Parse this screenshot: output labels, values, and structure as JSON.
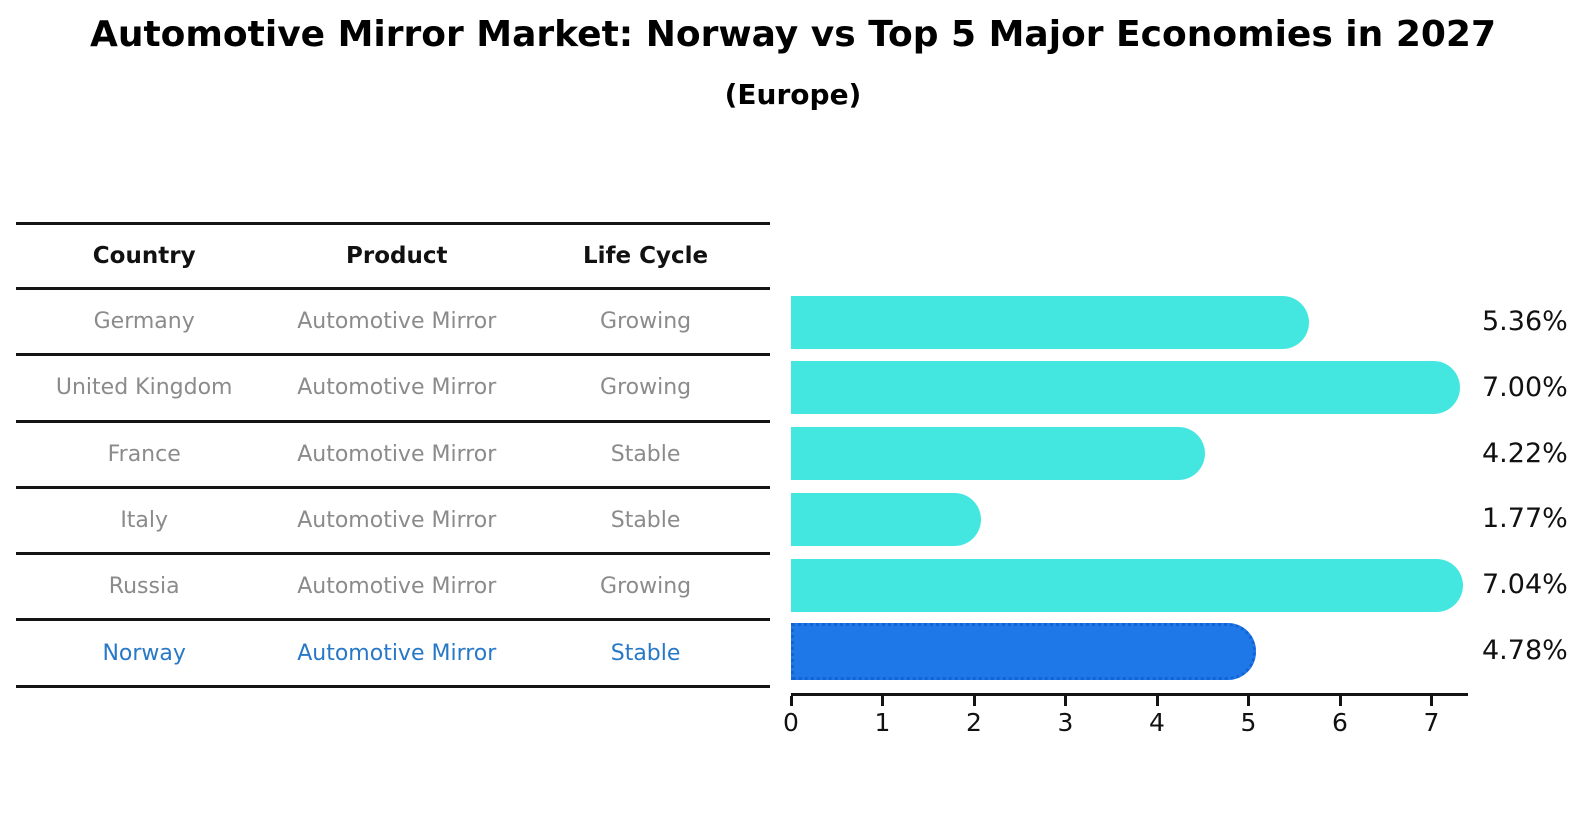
{
  "title": "Automotive Mirror Market: Norway vs Top 5 Major Economies in 2027",
  "subtitle": "(Europe)",
  "table": {
    "headers": [
      "Country",
      "Product",
      "Life Cycle"
    ],
    "rows": [
      {
        "country": "Germany",
        "product": "Automotive Mirror",
        "life_cycle": "Growing",
        "highlight": false
      },
      {
        "country": "United Kingdom",
        "product": "Automotive Mirror",
        "life_cycle": "Growing",
        "highlight": false
      },
      {
        "country": "France",
        "product": "Automotive Mirror",
        "life_cycle": "Stable",
        "highlight": false
      },
      {
        "country": "Italy",
        "product": "Automotive Mirror",
        "life_cycle": "Stable",
        "highlight": false
      },
      {
        "country": "Russia",
        "product": "Automotive Mirror",
        "life_cycle": "Growing",
        "highlight": false
      },
      {
        "country": "Norway",
        "product": "Automotive Mirror",
        "life_cycle": "Stable",
        "highlight": true
      }
    ]
  },
  "chart_data": {
    "type": "bar",
    "orientation": "horizontal",
    "title": "Automotive Mirror Market: Norway vs Top 5 Major Economies in 2027 (Europe)",
    "categories": [
      "Germany",
      "United Kingdom",
      "France",
      "Italy",
      "Russia",
      "Norway"
    ],
    "values": [
      5.36,
      7.0,
      4.22,
      1.77,
      7.04,
      4.78
    ],
    "value_labels": [
      "5.36%",
      "7.00%",
      "4.22%",
      "1.77%",
      "7.04%",
      "4.78%"
    ],
    "xticks": [
      "0",
      "1",
      "2",
      "3",
      "4",
      "5",
      "6",
      "7"
    ],
    "xlim": [
      0,
      7.4
    ],
    "grid": false,
    "legend": false,
    "highlight_index": 5,
    "bar_color": "#44e7e0",
    "highlight_color": "#1e78e8",
    "highlight_border_color": "#1263d6",
    "value_label_color": "#111111",
    "row_text_color": "#8b8b8b",
    "highlight_text_color": "#2878c8"
  }
}
